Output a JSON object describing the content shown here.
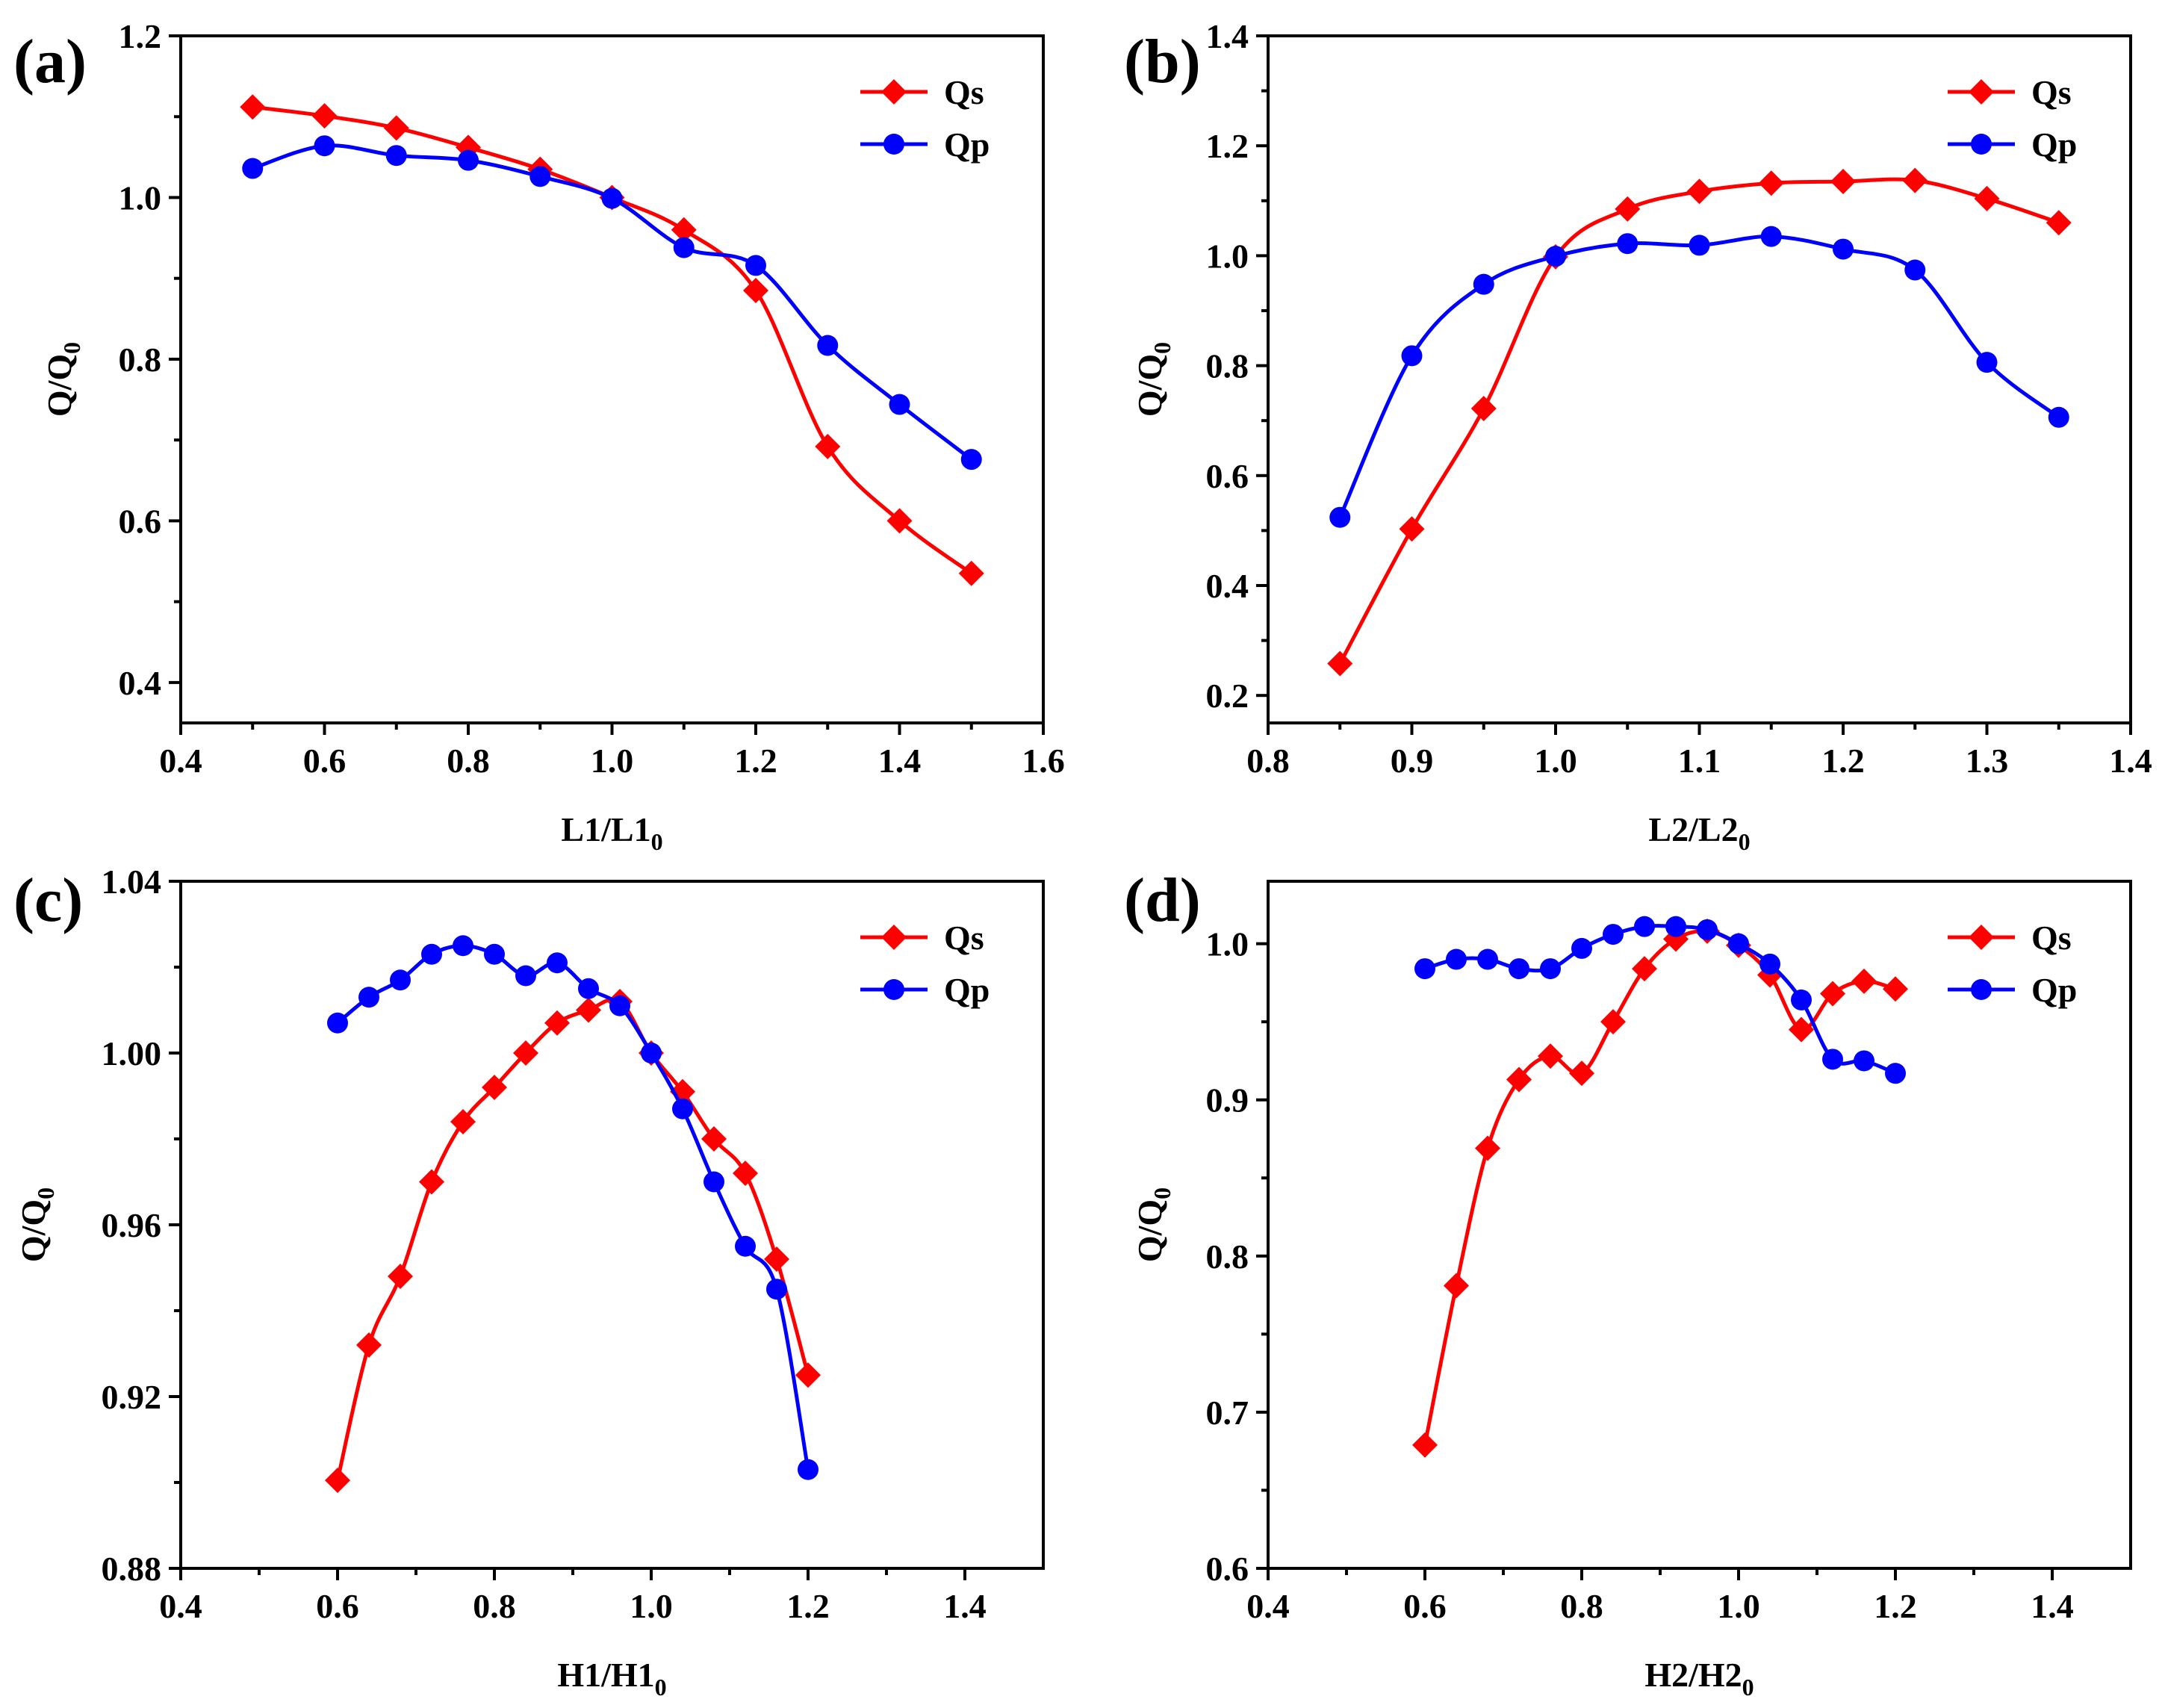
{
  "colors": {
    "qs": "#ff0000",
    "qp": "#0000ff"
  },
  "chart_data": [
    {
      "type": "line",
      "panel_label": "(a)",
      "xlabel": "L1/L1",
      "xlabel_sub": "0",
      "ylabel": "Q/Q",
      "ylabel_sub": "0",
      "xlim": [
        0.4,
        1.6
      ],
      "ylim": [
        0.35,
        1.2
      ],
      "xticks": [
        0.4,
        0.6,
        0.8,
        1.0,
        1.2,
        1.4,
        1.6
      ],
      "xtick_labels": [
        "0.4",
        "0.6",
        "0.8",
        "1.0",
        "1.2",
        "1.4",
        "1.6"
      ],
      "yticks": [
        0.4,
        0.6,
        0.8,
        1.0,
        1.2
      ],
      "ytick_labels": [
        "0.4",
        "0.6",
        "0.8",
        "1.0",
        "1.2"
      ],
      "legend_position": "top-right",
      "series": [
        {
          "name": "Qs",
          "marker": "diamond",
          "color": "#ff0000",
          "x": [
            0.5,
            0.6,
            0.7,
            0.8,
            0.9,
            1.0,
            1.1,
            1.2,
            1.3,
            1.4,
            1.5
          ],
          "y": [
            1.112,
            1.101,
            1.086,
            1.062,
            1.035,
            1.0,
            0.96,
            0.885,
            0.692,
            0.6,
            0.535
          ]
        },
        {
          "name": "Qp",
          "marker": "circle",
          "color": "#0000ff",
          "x": [
            0.5,
            0.6,
            0.7,
            0.8,
            0.9,
            1.0,
            1.1,
            1.2,
            1.3,
            1.4,
            1.5
          ],
          "y": [
            1.036,
            1.064,
            1.052,
            1.046,
            1.026,
            0.999,
            0.938,
            0.916,
            0.817,
            0.744,
            0.676
          ]
        }
      ]
    },
    {
      "type": "line",
      "panel_label": "(b)",
      "xlabel": "L2/L2",
      "xlabel_sub": "0",
      "ylabel": "Q/Q",
      "ylabel_sub": "0",
      "xlim": [
        0.8,
        1.4
      ],
      "ylim": [
        0.15,
        1.4
      ],
      "xticks": [
        0.8,
        0.9,
        1.0,
        1.1,
        1.2,
        1.3,
        1.4
      ],
      "xtick_labels": [
        "0.8",
        "0.9",
        "1.0",
        "1.1",
        "1.2",
        "1.3",
        "1.4"
      ],
      "yticks": [
        0.2,
        0.4,
        0.6,
        0.8,
        1.0,
        1.2,
        1.4
      ],
      "ytick_labels": [
        "0.2",
        "0.4",
        "0.6",
        "0.8",
        "1.0",
        "1.2",
        "1.4"
      ],
      "legend_position": "top-right",
      "series": [
        {
          "name": "Qs",
          "marker": "diamond",
          "color": "#ff0000",
          "x": [
            0.85,
            0.9,
            0.95,
            1.0,
            1.05,
            1.1,
            1.15,
            1.2,
            1.25,
            1.3,
            1.35
          ],
          "y": [
            0.258,
            0.503,
            0.722,
            0.998,
            1.085,
            1.117,
            1.132,
            1.135,
            1.137,
            1.104,
            1.06
          ]
        },
        {
          "name": "Qp",
          "marker": "circle",
          "color": "#0000ff",
          "x": [
            0.85,
            0.9,
            0.95,
            1.0,
            1.05,
            1.1,
            1.15,
            1.2,
            1.25,
            1.3,
            1.35
          ],
          "y": [
            0.524,
            0.818,
            0.948,
            0.999,
            1.022,
            1.019,
            1.035,
            1.012,
            0.974,
            0.806,
            0.706
          ]
        }
      ]
    },
    {
      "type": "line",
      "panel_label": "(c)",
      "xlabel": "H1/H1",
      "xlabel_sub": "0",
      "ylabel": "Q/Q",
      "ylabel_sub": "0",
      "xlim": [
        0.4,
        1.5
      ],
      "ylim": [
        0.88,
        1.04
      ],
      "xticks": [
        0.4,
        0.6,
        0.8,
        1.0,
        1.2,
        1.4
      ],
      "xtick_labels": [
        "0.4",
        "0.6",
        "0.8",
        "1.0",
        "1.2",
        "1.4"
      ],
      "yticks": [
        0.88,
        0.92,
        0.96,
        1.0,
        1.04
      ],
      "ytick_labels": [
        "0.88",
        "0.92",
        "0.96",
        "1.00",
        "1.04"
      ],
      "legend_position": "top-right",
      "series": [
        {
          "name": "Qs",
          "marker": "diamond",
          "color": "#ff0000",
          "x": [
            0.6,
            0.64,
            0.68,
            0.72,
            0.76,
            0.8,
            0.84,
            0.88,
            0.92,
            0.96,
            1.0,
            1.04,
            1.08,
            1.12,
            1.16,
            1.2
          ],
          "y": [
            0.9005,
            0.932,
            0.948,
            0.97,
            0.984,
            0.992,
            1.0,
            1.007,
            1.01,
            1.012,
            1.0,
            0.991,
            0.98,
            0.972,
            0.952,
            0.925
          ]
        },
        {
          "name": "Qp",
          "marker": "circle",
          "color": "#0000ff",
          "x": [
            0.6,
            0.64,
            0.68,
            0.72,
            0.76,
            0.8,
            0.84,
            0.88,
            0.92,
            0.96,
            1.0,
            1.04,
            1.08,
            1.12,
            1.16,
            1.2
          ],
          "y": [
            1.007,
            1.013,
            1.017,
            1.023,
            1.025,
            1.023,
            1.018,
            1.021,
            1.015,
            1.011,
            1.0,
            0.987,
            0.97,
            0.955,
            0.945,
            0.903
          ]
        }
      ]
    },
    {
      "type": "line",
      "panel_label": "(d)",
      "xlabel": "H2/H2",
      "xlabel_sub": "0",
      "ylabel": "Q/Q",
      "ylabel_sub": "0",
      "xlim": [
        0.4,
        1.5
      ],
      "ylim": [
        0.6,
        1.04
      ],
      "xticks": [
        0.4,
        0.6,
        0.8,
        1.0,
        1.2,
        1.4
      ],
      "xtick_labels": [
        "0.4",
        "0.6",
        "0.8",
        "1.0",
        "1.2",
        "1.4"
      ],
      "yticks": [
        0.6,
        0.7,
        0.8,
        0.9,
        1.0
      ],
      "ytick_labels": [
        "0.6",
        "0.7",
        "0.8",
        "0.9",
        "1.0"
      ],
      "legend_position": "top-right",
      "series": [
        {
          "name": "Qs",
          "marker": "diamond",
          "color": "#ff0000",
          "x": [
            0.6,
            0.64,
            0.68,
            0.72,
            0.76,
            0.8,
            0.84,
            0.88,
            0.92,
            0.96,
            1.0,
            1.04,
            1.08,
            1.12,
            1.16,
            1.2
          ],
          "y": [
            0.679,
            0.781,
            0.869,
            0.913,
            0.928,
            0.917,
            0.95,
            0.984,
            1.003,
            1.008,
            0.999,
            0.98,
            0.945,
            0.968,
            0.976,
            0.971
          ]
        },
        {
          "name": "Qp",
          "marker": "circle",
          "color": "#0000ff",
          "x": [
            0.6,
            0.64,
            0.68,
            0.72,
            0.76,
            0.8,
            0.84,
            0.88,
            0.92,
            0.96,
            1.0,
            1.04,
            1.08,
            1.12,
            1.16,
            1.2
          ],
          "y": [
            0.984,
            0.99,
            0.99,
            0.984,
            0.984,
            0.997,
            1.006,
            1.011,
            1.011,
            1.009,
            1.0,
            0.987,
            0.964,
            0.926,
            0.925,
            0.917
          ]
        }
      ]
    }
  ]
}
